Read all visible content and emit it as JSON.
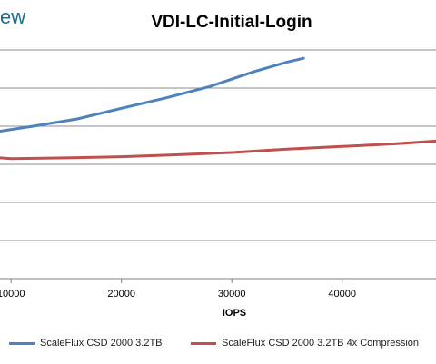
{
  "brand_text": "ew",
  "chart_data": {
    "type": "line",
    "title": "VDI-LC-Initial-Login",
    "xlabel": "IOPS",
    "ylabel": "",
    "xticks": [
      10000,
      20000,
      30000,
      40000
    ],
    "xtick_labels": [
      "10000",
      "20000",
      "30000",
      "40000"
    ],
    "xlim": [
      9000,
      48500
    ],
    "ylim": [
      0,
      6
    ],
    "yticks": [
      0,
      1,
      2,
      3,
      4,
      5,
      6
    ],
    "grid": "horizontal",
    "legend_position": "bottom",
    "series": [
      {
        "name": "ScaleFlux CSD 2000 3.2TB",
        "color": "#4f81bd",
        "x": [
          9000,
          12000,
          16000,
          20000,
          24000,
          28000,
          32000,
          35000,
          36500
        ],
        "y": [
          3.87,
          4.0,
          4.19,
          4.47,
          4.74,
          5.04,
          5.43,
          5.68,
          5.78
        ]
      },
      {
        "name": "ScaleFlux CSD 2000 3.2TB 4x Compression",
        "color": "#c0504d",
        "x": [
          9000,
          10000,
          15000,
          20000,
          25000,
          30000,
          35000,
          40000,
          45000,
          48500
        ],
        "y": [
          3.17,
          3.15,
          3.17,
          3.2,
          3.25,
          3.31,
          3.4,
          3.47,
          3.54,
          3.61
        ]
      }
    ]
  }
}
